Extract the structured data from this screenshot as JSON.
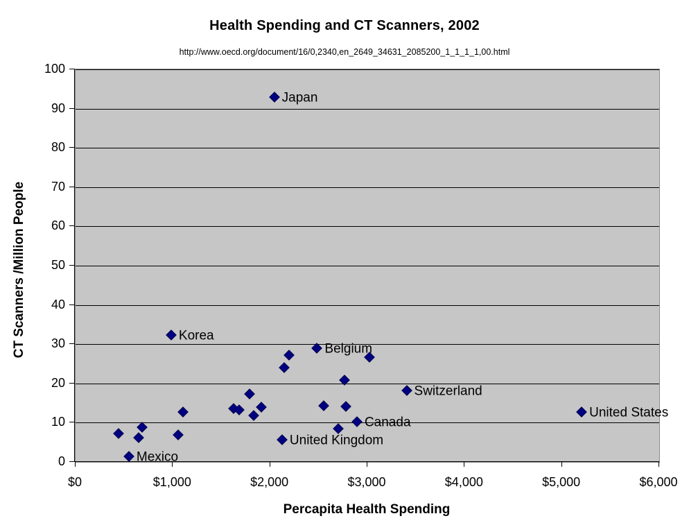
{
  "title": "Health Spending and CT Scanners, 2002",
  "subtitle": "http://www.oecd.org/document/16/0,2340,en_2649_34631_2085200_1_1_1_1,00.html",
  "colors": {
    "marker": "#000080",
    "marker_border": "#000050",
    "plot_background": "#c6c6c6",
    "gridline": "#000000",
    "plot_border": "#8c8c8c"
  },
  "chart_data": {
    "type": "scatter",
    "title": "Health Spending and CT Scanners, 2002",
    "subtitle": "http://www.oecd.org/document/16/0,2340,en_2649_34631_2085200_1_1_1_1,00.html",
    "xlabel": "Percapita Health Spending",
    "ylabel": "CT Scanners /Million People",
    "xlim": [
      0,
      6000
    ],
    "ylim": [
      0,
      100
    ],
    "grid": "horizontal",
    "legend": "none",
    "marker": "diamond",
    "x_ticks": [
      {
        "v": 0,
        "label": "$0"
      },
      {
        "v": 1000,
        "label": "$1,000"
      },
      {
        "v": 2000,
        "label": "$2,000"
      },
      {
        "v": 3000,
        "label": "$3,000"
      },
      {
        "v": 4000,
        "label": "$4,000"
      },
      {
        "v": 5000,
        "label": "$5,000"
      },
      {
        "v": 6000,
        "label": "$6,000"
      }
    ],
    "y_ticks": [
      {
        "v": 0,
        "label": "0"
      },
      {
        "v": 10,
        "label": "10"
      },
      {
        "v": 20,
        "label": "20"
      },
      {
        "v": 30,
        "label": "30"
      },
      {
        "v": 40,
        "label": "40"
      },
      {
        "v": 50,
        "label": "50"
      },
      {
        "v": 60,
        "label": "60"
      },
      {
        "v": 70,
        "label": "70"
      },
      {
        "v": 80,
        "label": "80"
      },
      {
        "v": 90,
        "label": "90"
      },
      {
        "v": 100,
        "label": "100"
      }
    ],
    "points": [
      {
        "x": 450,
        "y": 7.1,
        "label": ""
      },
      {
        "x": 555,
        "y": 1.2,
        "label": "Mexico"
      },
      {
        "x": 655,
        "y": 6.0,
        "label": ""
      },
      {
        "x": 690,
        "y": 8.6,
        "label": ""
      },
      {
        "x": 990,
        "y": 32.1,
        "label": "Korea"
      },
      {
        "x": 1060,
        "y": 6.8,
        "label": ""
      },
      {
        "x": 1110,
        "y": 12.6,
        "label": ""
      },
      {
        "x": 1635,
        "y": 13.4,
        "label": ""
      },
      {
        "x": 1690,
        "y": 13.0,
        "label": ""
      },
      {
        "x": 1795,
        "y": 17.1,
        "label": ""
      },
      {
        "x": 1835,
        "y": 11.6,
        "label": ""
      },
      {
        "x": 1920,
        "y": 13.8,
        "label": ""
      },
      {
        "x": 2050,
        "y": 92.8,
        "label": "Japan"
      },
      {
        "x": 2130,
        "y": 5.5,
        "label": "United Kingdom"
      },
      {
        "x": 2150,
        "y": 23.9,
        "label": ""
      },
      {
        "x": 2200,
        "y": 27.1,
        "label": ""
      },
      {
        "x": 2490,
        "y": 28.8,
        "label": "Belgium"
      },
      {
        "x": 2555,
        "y": 14.1,
        "label": ""
      },
      {
        "x": 2705,
        "y": 8.3,
        "label": ""
      },
      {
        "x": 2775,
        "y": 20.7,
        "label": ""
      },
      {
        "x": 2785,
        "y": 13.9,
        "label": ""
      },
      {
        "x": 2900,
        "y": 10.0,
        "label": "Canada"
      },
      {
        "x": 3030,
        "y": 26.5,
        "label": ""
      },
      {
        "x": 3410,
        "y": 18.0,
        "label": "Switzerland"
      },
      {
        "x": 5210,
        "y": 12.6,
        "label": "United States"
      }
    ]
  }
}
